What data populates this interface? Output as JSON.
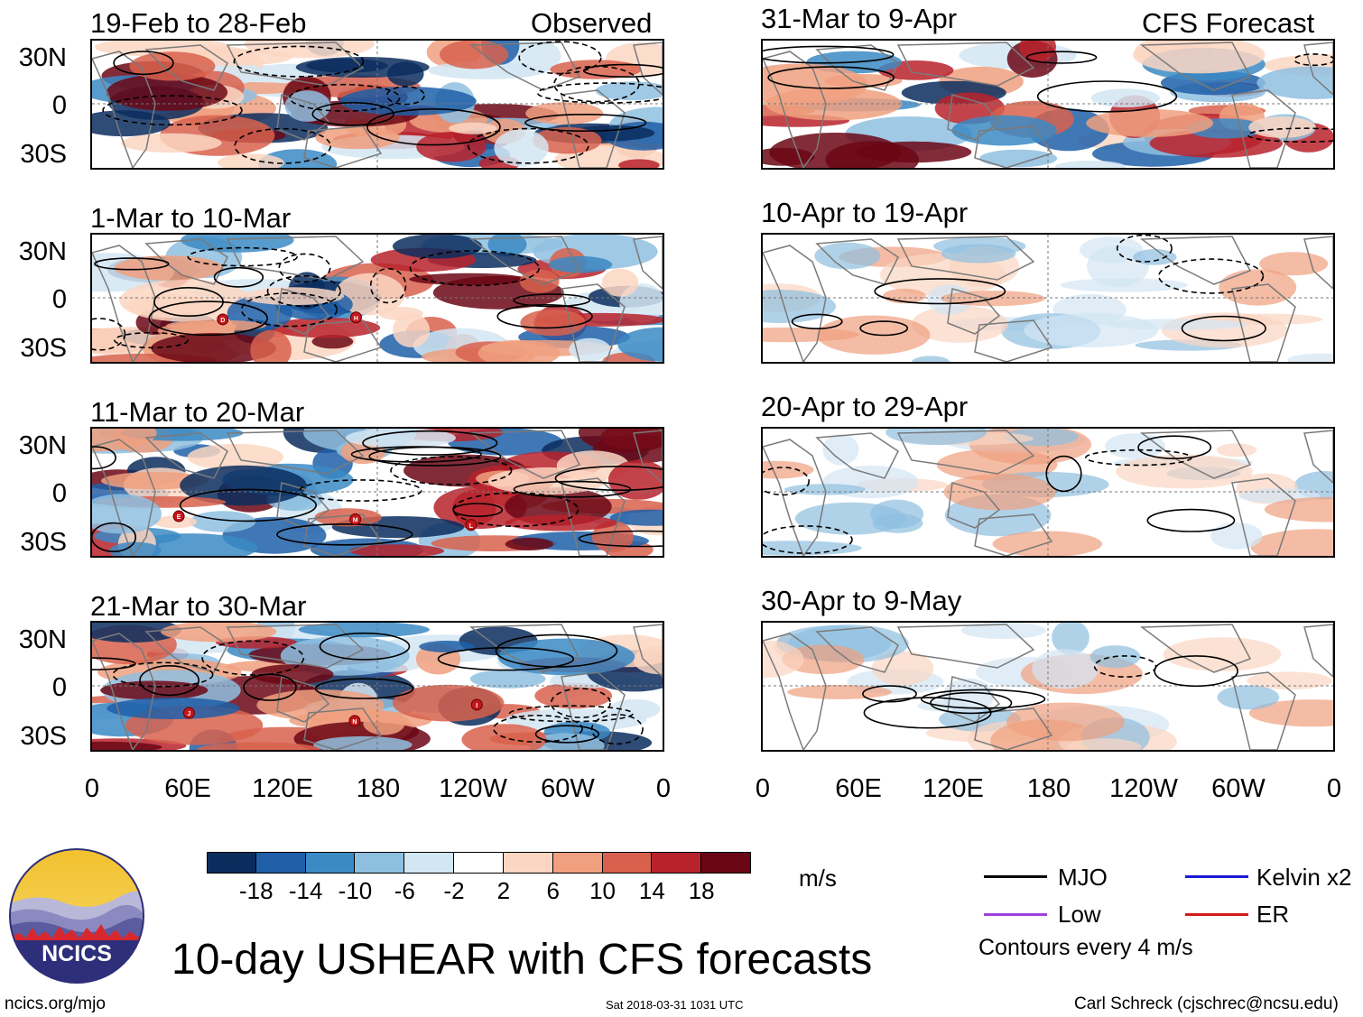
{
  "observed_label": "Observed",
  "forecast_label": "CFS Forecast",
  "lat_labels": [
    "30N",
    "0",
    "30S"
  ],
  "lon_labels": [
    "0",
    "60E",
    "120E",
    "180",
    "120W",
    "60W",
    "0"
  ],
  "panels_left": [
    {
      "title": "19-Feb to 28-Feb",
      "storms": []
    },
    {
      "title": "1-Mar to 10-Mar",
      "storms": [
        "D",
        "H"
      ]
    },
    {
      "title": "11-Mar to 20-Mar",
      "storms": [
        "E",
        "M",
        "L"
      ]
    },
    {
      "title": "21-Mar to 30-Mar",
      "storms": [
        "J",
        "N",
        "I"
      ]
    }
  ],
  "panels_right": [
    {
      "title": "31-Mar to 9-Apr"
    },
    {
      "title": "10-Apr to 19-Apr"
    },
    {
      "title": "20-Apr to 29-Apr"
    },
    {
      "title": "30-Apr to 9-May"
    }
  ],
  "colorbar": {
    "colors": [
      "#0b2d5e",
      "#1f5fa8",
      "#3b8ac4",
      "#8fbfe0",
      "#d3e6f3",
      "#ffffff",
      "#fbd6c2",
      "#f0a07f",
      "#d8614d",
      "#b8222b",
      "#6b0715"
    ],
    "labels": [
      "-18",
      "-14",
      "-10",
      "-6",
      "-2",
      "2",
      "6",
      "10",
      "14",
      "18"
    ],
    "units": "m/s"
  },
  "legend": {
    "items": [
      {
        "label": "MJO",
        "color": "#000000"
      },
      {
        "label": "Kelvin x2",
        "color": "#1a1ad6"
      },
      {
        "label": "Low",
        "color": "#a040e0"
      },
      {
        "label": "ER",
        "color": "#d61a1a"
      }
    ],
    "contour_note": "Contours every 4 m/s"
  },
  "logo_text": "NCICS",
  "main_title": "10-day USHEAR with CFS forecasts",
  "footer": {
    "left": "ncics.org/mjo",
    "center": "Sat 2018-03-31 1031 UTC",
    "right": "Carl Schreck (cjschrec@ncsu.edu)"
  }
}
